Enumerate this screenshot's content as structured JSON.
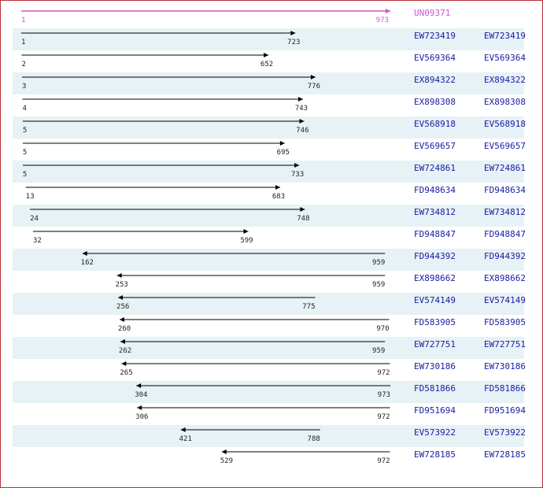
{
  "query_length": 973,
  "colors": {
    "reference_line": "#cc55cc",
    "hit_line": "#000000",
    "accession_link": "#1a1aa6",
    "row_shade": "#e6f2f5",
    "frame_border": "#b8323a"
  },
  "reference": {
    "id": "UN09371",
    "start": 1,
    "end": 973,
    "direction": "forward"
  },
  "alignments": [
    {
      "id": "EW723419",
      "link": "EW723419",
      "start": 1,
      "end": 723,
      "direction": "forward"
    },
    {
      "id": "EV569364",
      "link": "EV569364",
      "start": 2,
      "end": 652,
      "direction": "forward"
    },
    {
      "id": "EX894322",
      "link": "EX894322",
      "start": 3,
      "end": 776,
      "direction": "forward"
    },
    {
      "id": "EX898308",
      "link": "EX898308",
      "start": 4,
      "end": 743,
      "direction": "forward"
    },
    {
      "id": "EV568918",
      "link": "EV568918",
      "start": 5,
      "end": 746,
      "direction": "forward"
    },
    {
      "id": "EV569657",
      "link": "EV569657",
      "start": 5,
      "end": 695,
      "direction": "forward"
    },
    {
      "id": "EW724861",
      "link": "EW724861",
      "start": 5,
      "end": 733,
      "direction": "forward"
    },
    {
      "id": "FD948634",
      "link": "FD948634",
      "start": 13,
      "end": 683,
      "direction": "forward"
    },
    {
      "id": "EW734812",
      "link": "EW734812",
      "start": 24,
      "end": 748,
      "direction": "forward"
    },
    {
      "id": "FD948847",
      "link": "FD948847",
      "start": 32,
      "end": 599,
      "direction": "forward"
    },
    {
      "id": "FD944392",
      "link": "FD944392",
      "start": 162,
      "end": 959,
      "direction": "reverse"
    },
    {
      "id": "EX898662",
      "link": "EX898662",
      "start": 253,
      "end": 959,
      "direction": "reverse"
    },
    {
      "id": "EV574149",
      "link": "EV574149",
      "start": 256,
      "end": 775,
      "direction": "reverse"
    },
    {
      "id": "FD583905",
      "link": "FD583905",
      "start": 260,
      "end": 970,
      "direction": "reverse"
    },
    {
      "id": "EW727751",
      "link": "EW727751",
      "start": 262,
      "end": 959,
      "direction": "reverse"
    },
    {
      "id": "EW730186",
      "link": "EW730186",
      "start": 265,
      "end": 972,
      "direction": "reverse"
    },
    {
      "id": "FD581866",
      "link": "FD581866",
      "start": 304,
      "end": 973,
      "direction": "reverse"
    },
    {
      "id": "FD951694",
      "link": "FD951694",
      "start": 306,
      "end": 972,
      "direction": "reverse"
    },
    {
      "id": "EV573922",
      "link": "EV573922",
      "start": 421,
      "end": 788,
      "direction": "reverse"
    },
    {
      "id": "EW728185",
      "link": "EW728185",
      "start": 529,
      "end": 972,
      "direction": "reverse"
    }
  ]
}
